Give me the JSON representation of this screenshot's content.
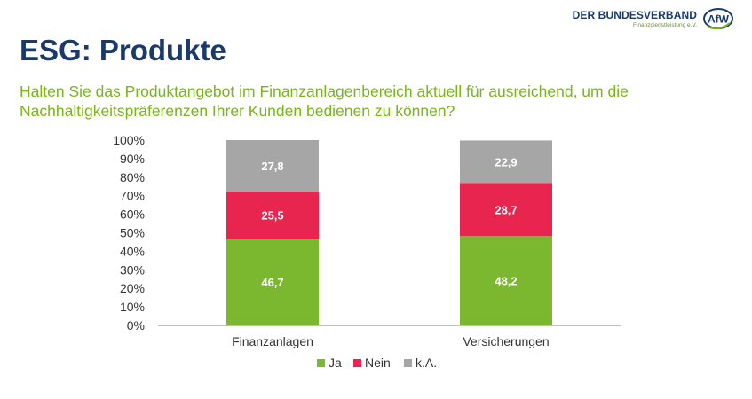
{
  "header": {
    "title": "ESG: Produkte",
    "subtitle": "Halten Sie das Produktangebot im Finanzanlagenbereich aktuell für ausreichend, um die Nachhaltigkeitspräferenzen Ihrer Kunden bedienen zu können?"
  },
  "logo": {
    "name": "DER BUNDESVERBAND",
    "sub": "Finanzdienstleistung e.V.",
    "badge": "AfW"
  },
  "chart_data": {
    "type": "bar",
    "stacked": true,
    "categories": [
      "Finanzanlagen",
      "Versicherungen"
    ],
    "series": [
      {
        "name": "Ja",
        "color": "#7cb82f",
        "values": [
          46.7,
          48.2
        ],
        "labels": [
          "46,7",
          "48,2"
        ]
      },
      {
        "name": "Nein",
        "color": "#e8254e",
        "values": [
          25.5,
          28.7
        ],
        "labels": [
          "25,5",
          "28,7"
        ]
      },
      {
        "name": "k.A.",
        "color": "#a6a6a6",
        "values": [
          27.8,
          22.9
        ],
        "labels": [
          "27,8",
          "22,9"
        ]
      }
    ],
    "ylim": [
      0,
      100
    ],
    "yticks": [
      "0%",
      "10%",
      "20%",
      "30%",
      "40%",
      "50%",
      "60%",
      "70%",
      "80%",
      "90%",
      "100%"
    ],
    "legend_position": "bottom",
    "grid": false
  }
}
